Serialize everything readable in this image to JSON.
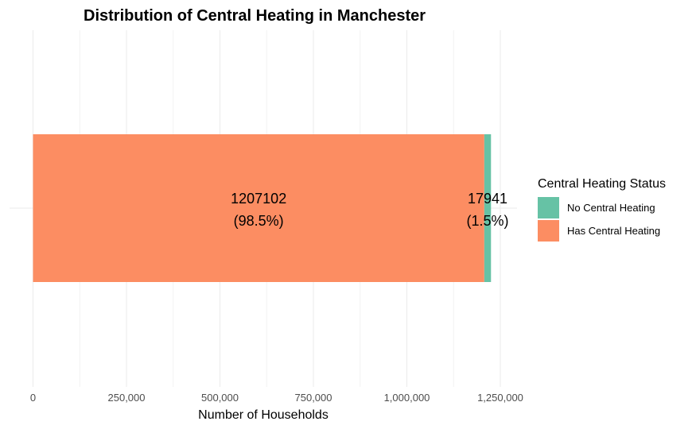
{
  "chart_data": {
    "type": "bar",
    "orientation": "horizontal",
    "stacked": true,
    "title": "Distribution of Central Heating in Manchester",
    "xlabel": "Number of Households",
    "ylabel": "",
    "xlim": [
      0,
      1350000
    ],
    "x_ticks": [
      0,
      250000,
      500000,
      750000,
      1000000,
      1250000
    ],
    "x_tick_labels": [
      "0",
      "250,000",
      "500,000",
      "750,000",
      "1,000,000",
      "1,250,000"
    ],
    "grid": true,
    "legend": {
      "title": "Central Heating Status",
      "placement": "right",
      "entries": [
        "No Central Heating",
        "Has Central Heating"
      ]
    },
    "series": [
      {
        "name": "Has Central Heating",
        "value": 1207102,
        "label_value": "1207102",
        "label_percent": "(98.5%)",
        "color": "#fc8d62"
      },
      {
        "name": "No Central Heating",
        "value": 17941,
        "label_value": "17941",
        "label_percent": "(1.5%)",
        "color": "#66c2a5"
      }
    ]
  }
}
